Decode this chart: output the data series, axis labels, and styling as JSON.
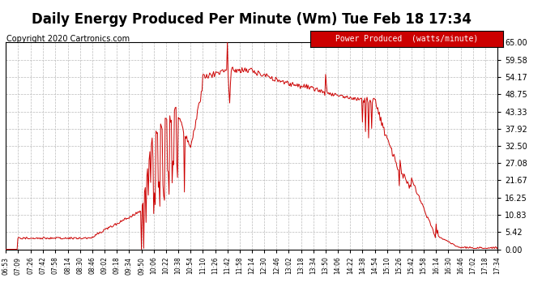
{
  "title": "Daily Energy Produced Per Minute (Wm) Tue Feb 18 17:34",
  "copyright": "Copyright 2020 Cartronics.com",
  "legend_label": "Power Produced  (watts/minute)",
  "legend_bg": "#cc0000",
  "legend_text_color": "#ffffff",
  "line_color": "#cc0000",
  "bg_color": "#ffffff",
  "plot_bg_color": "#ffffff",
  "grid_color": "#bbbbbb",
  "title_fontsize": 12,
  "copyright_fontsize": 7,
  "ylabel_right": [
    "65.00",
    "59.58",
    "54.17",
    "48.75",
    "43.33",
    "37.92",
    "32.50",
    "27.08",
    "21.67",
    "16.25",
    "10.83",
    "5.42",
    "0.00"
  ],
  "ymax": 65.0,
  "ymin": 0.0,
  "x_tick_labels": [
    "06:53",
    "07:09",
    "07:26",
    "07:42",
    "07:58",
    "08:14",
    "08:30",
    "08:46",
    "09:02",
    "09:18",
    "09:34",
    "09:50",
    "10:06",
    "10:22",
    "10:38",
    "10:54",
    "11:10",
    "11:26",
    "11:42",
    "11:58",
    "12:14",
    "12:30",
    "12:46",
    "13:02",
    "13:18",
    "13:34",
    "13:50",
    "14:06",
    "14:22",
    "14:38",
    "14:54",
    "15:10",
    "15:26",
    "15:42",
    "15:58",
    "16:14",
    "16:30",
    "16:46",
    "17:02",
    "17:18",
    "17:34"
  ]
}
